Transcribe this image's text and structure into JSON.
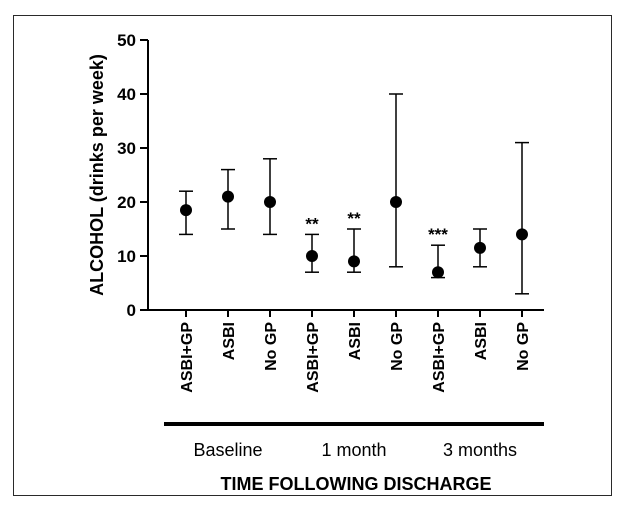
{
  "chart_data": {
    "type": "scatter",
    "ylabel": "ALCOHOL (drinks per week)",
    "xlabel": "TIME FOLLOWING DISCHARGE",
    "ylim": [
      0,
      50
    ],
    "yticks": [
      0,
      10,
      20,
      30,
      40,
      50
    ],
    "error_bars": true,
    "categories": [
      "ASBI+GP",
      "ASBI",
      "No GP",
      "ASBI+GP",
      "ASBI",
      "No GP",
      "ASBI+GP",
      "ASBI",
      "No GP"
    ],
    "groups": [
      {
        "label": "Baseline",
        "span": [
          0,
          2
        ]
      },
      {
        "label": "1 month",
        "span": [
          3,
          5
        ]
      },
      {
        "label": "3 months",
        "span": [
          6,
          8
        ]
      }
    ],
    "points": [
      {
        "category": "ASBI+GP",
        "group": "Baseline",
        "value": 18.5,
        "low": 14,
        "high": 22,
        "sig": ""
      },
      {
        "category": "ASBI",
        "group": "Baseline",
        "value": 21,
        "low": 15,
        "high": 26,
        "sig": ""
      },
      {
        "category": "No GP",
        "group": "Baseline",
        "value": 20,
        "low": 14,
        "high": 28,
        "sig": ""
      },
      {
        "category": "ASBI+GP",
        "group": "1 month",
        "value": 10,
        "low": 7,
        "high": 14,
        "sig": "**"
      },
      {
        "category": "ASBI",
        "group": "1 month",
        "value": 9,
        "low": 7,
        "high": 15,
        "sig": "**"
      },
      {
        "category": "No GP",
        "group": "1 month",
        "value": 20,
        "low": 8,
        "high": 40,
        "sig": ""
      },
      {
        "category": "ASBI+GP",
        "group": "3 months",
        "value": 7,
        "low": 6,
        "high": 12,
        "sig": "***"
      },
      {
        "category": "ASBI",
        "group": "3 months",
        "value": 11.5,
        "low": 8,
        "high": 15,
        "sig": ""
      },
      {
        "category": "No GP",
        "group": "3 months",
        "value": 14,
        "low": 3,
        "high": 31,
        "sig": ""
      }
    ],
    "colors": {
      "marker": "#000000",
      "axis": "#000000",
      "frame": "#2a2a2a"
    }
  }
}
